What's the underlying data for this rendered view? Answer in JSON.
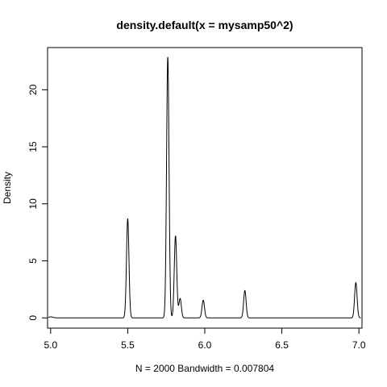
{
  "chart_data": {
    "type": "line",
    "title": "density.default(x = mysamp50^2)",
    "xlabel": "N = 2000   Bandwidth = 0.007804",
    "ylabel": "Density",
    "xlim": [
      4.98,
      7.02
    ],
    "ylim": [
      -0.9,
      23.7
    ],
    "xticks": [
      5.0,
      5.5,
      6.0,
      6.5,
      7.0
    ],
    "xtick_labels": [
      "5.0",
      "5.5",
      "6.0",
      "6.5",
      "7.0"
    ],
    "yticks": [
      0,
      5,
      10,
      15,
      20
    ],
    "ytick_labels": [
      "0",
      "5",
      "10",
      "15",
      "20"
    ],
    "grid": false,
    "legend": "none",
    "line_color": "#000000",
    "peaks": [
      {
        "x": 5.0,
        "y": 0.09,
        "w": 0.015
      },
      {
        "x": 5.5,
        "y": 8.7,
        "w": 0.008
      },
      {
        "x": 5.76,
        "y": 22.9,
        "w": 0.008
      },
      {
        "x": 5.81,
        "y": 7.2,
        "w": 0.008
      },
      {
        "x": 5.84,
        "y": 1.7,
        "w": 0.008
      },
      {
        "x": 5.99,
        "y": 1.55,
        "w": 0.008
      },
      {
        "x": 6.26,
        "y": 2.4,
        "w": 0.008
      },
      {
        "x": 6.98,
        "y": 3.1,
        "w": 0.008
      }
    ]
  }
}
